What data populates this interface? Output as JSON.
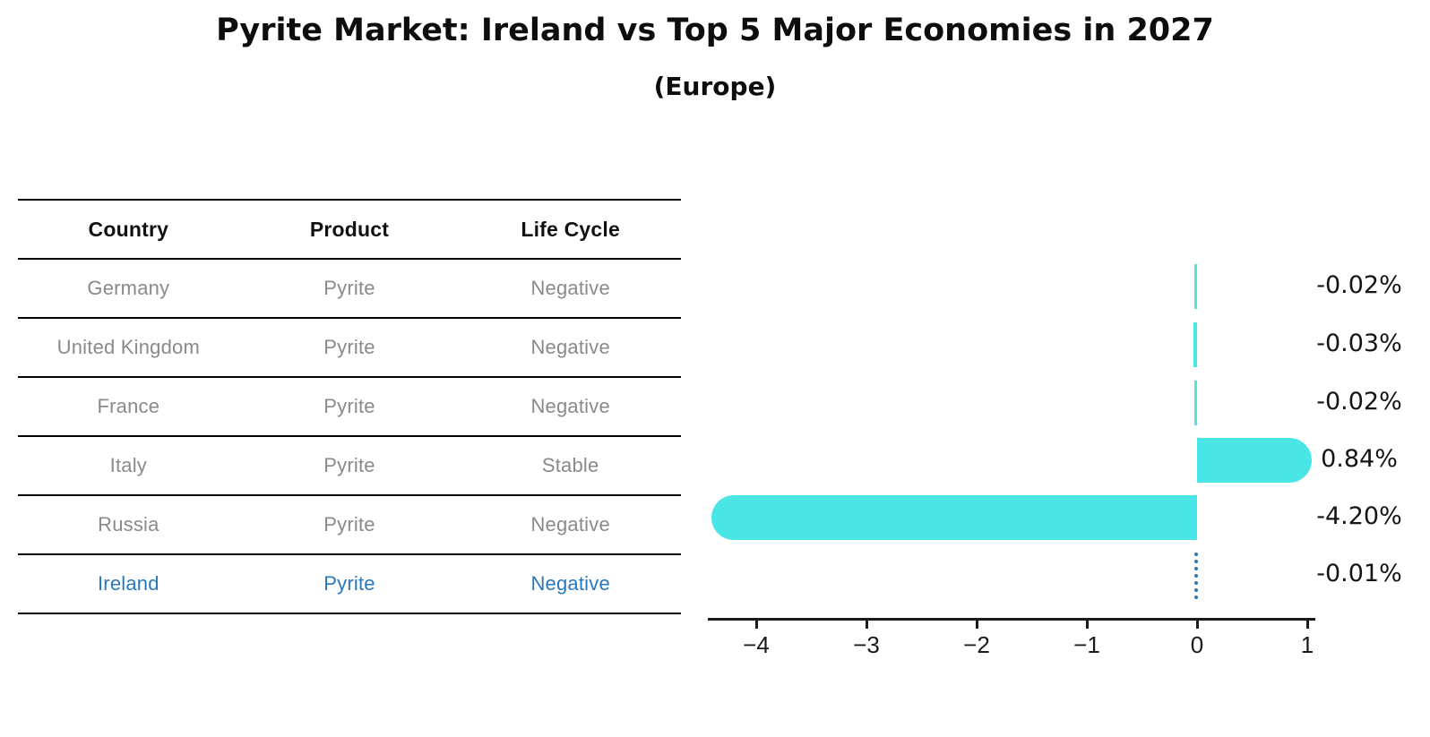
{
  "title": "Pyrite Market: Ireland vs Top 5 Major Economies in 2027",
  "subtitle": "(Europe)",
  "table": {
    "headers": [
      "Country",
      "Product",
      "Life Cycle"
    ],
    "rows": [
      {
        "cells": [
          "Germany",
          "Pyrite",
          "Negative"
        ],
        "highlighted": false
      },
      {
        "cells": [
          "United Kingdom",
          "Pyrite",
          "Negative"
        ],
        "highlighted": false
      },
      {
        "cells": [
          "France",
          "Pyrite",
          "Negative"
        ],
        "highlighted": false
      },
      {
        "cells": [
          "Italy",
          "Pyrite",
          "Stable"
        ],
        "highlighted": false
      },
      {
        "cells": [
          "Russia",
          "Pyrite",
          "Negative"
        ],
        "highlighted": false
      },
      {
        "cells": [
          "Ireland",
          "Pyrite",
          "Negative"
        ],
        "highlighted": true
      }
    ]
  },
  "chart_data": {
    "type": "bar",
    "orientation": "horizontal",
    "title": "Pyrite Market: Ireland vs Top 5 Major Economies in 2027",
    "subtitle": "(Europe)",
    "categories": [
      "Germany",
      "United Kingdom",
      "France",
      "Italy",
      "Russia",
      "Ireland"
    ],
    "values": [
      -0.02,
      -0.03,
      -0.02,
      0.84,
      -4.2,
      -0.01
    ],
    "value_labels": [
      "-0.02%",
      "-0.03%",
      "-0.02%",
      "0.84%",
      "-4.20%",
      "-0.01%"
    ],
    "x_ticks": [
      -4,
      -3,
      -2,
      -1,
      0,
      1
    ],
    "x_tick_labels": [
      "−4",
      "−3",
      "−2",
      "−1",
      "0",
      "1"
    ],
    "xlim": [
      -4.44,
      1.07
    ],
    "grid": false,
    "legend": false,
    "bar_color": "#4AE6E6",
    "highlight_color": "#2878BE",
    "highlight_index": 5,
    "highlight_style": "dotted-zero-line"
  },
  "colors": {
    "bar": "#4AE6E6",
    "highlight": "#2878BE",
    "row_text": "#8A8A8A",
    "header_text": "#111111",
    "axis": "#1A1A1A"
  }
}
